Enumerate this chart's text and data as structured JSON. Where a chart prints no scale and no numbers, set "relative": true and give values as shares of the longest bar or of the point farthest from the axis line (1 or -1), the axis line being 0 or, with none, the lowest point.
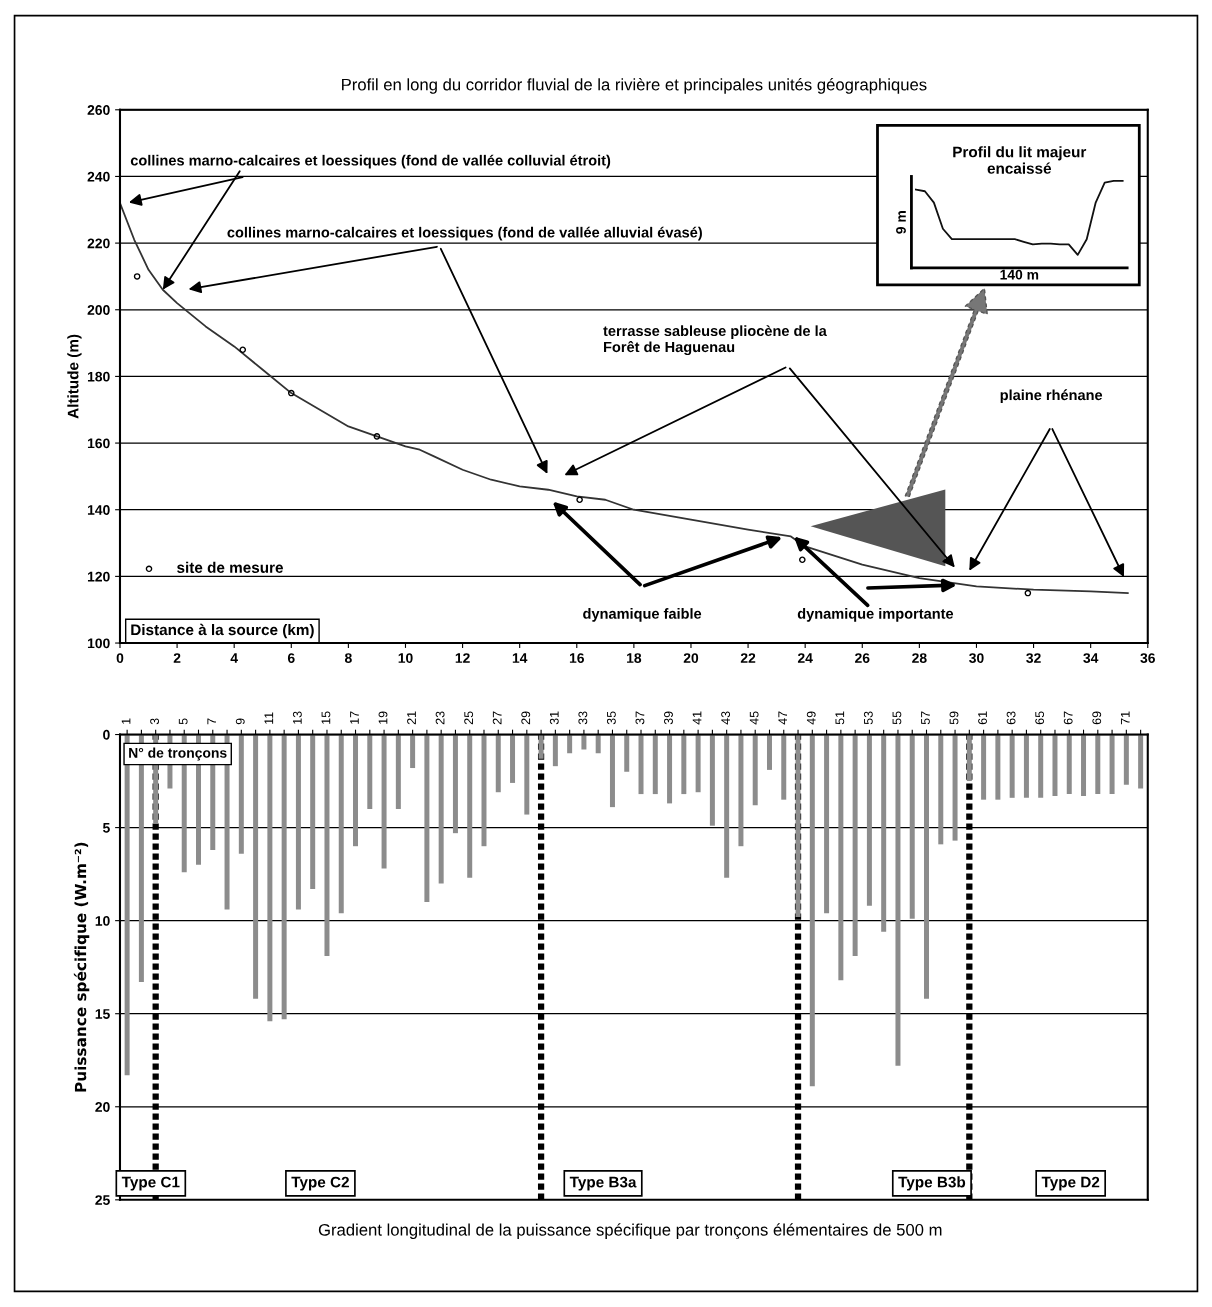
{
  "chart_data": [
    {
      "type": "line",
      "title": "Profil en long du corridor fluvial de la rivière et principales unités géographiques",
      "xlabel": "Distance à la source (km)",
      "ylabel": "Altitude (m)",
      "xlim": [
        0,
        36
      ],
      "xticks": [
        0,
        2,
        4,
        6,
        8,
        10,
        12,
        14,
        16,
        18,
        20,
        22,
        24,
        26,
        28,
        30,
        32,
        34,
        36
      ],
      "ylim": [
        100,
        260
      ],
      "yticks": [
        100,
        120,
        140,
        160,
        180,
        200,
        220,
        240,
        260
      ],
      "grid": "y",
      "legend": "bottom left",
      "series": [
        {
          "type": "line",
          "color": "#333333",
          "marker": "none",
          "x": [
            0,
            0.5,
            1,
            1.5,
            2,
            3,
            4,
            5,
            6,
            7,
            8,
            9,
            10,
            10.5,
            11,
            12,
            13,
            14,
            15,
            16,
            17,
            18,
            20,
            22,
            23.5,
            24,
            26,
            28,
            30,
            32,
            34,
            35.3
          ],
          "values": [
            232,
            221,
            212,
            206,
            202,
            195,
            189,
            182,
            175,
            170,
            165,
            162,
            159,
            158,
            156,
            152,
            149,
            147,
            146,
            144,
            143,
            140,
            137,
            134,
            132,
            129,
            123.5,
            119.5,
            117,
            116,
            115.5,
            115
          ]
        },
        {
          "type": "scatter",
          "name": "site de mesure",
          "color": "#000000",
          "marker": "circle",
          "x": [
            0.6,
            4.3,
            6,
            9,
            16.1,
            23.9,
            31.8
          ],
          "values": [
            210,
            188,
            175,
            162,
            143,
            125,
            115
          ]
        }
      ],
      "annotations": [
        {
          "text": "collines marno-calcaires et loessiques (fond de vallée colluvial étroit)",
          "x": 1.5,
          "y": 206
        },
        "collines marno-calcaires et loessiques (fond de vallée alluvial évasé)",
        "terrasse sableuse pliocène de la\nForêt de Haguenau",
        "plaine rhénane",
        "dynamique faible",
        {
          "text": "dynamique importante",
          "x": 23.6,
          "y": 132
        }
      ]
    },
    {
      "type": "line",
      "relative": true,
      "title": "Profil du lit majeur\nencaissé",
      "xlabel": "140 m",
      "ylabel": "9 m",
      "color": "#111111",
      "categories": [
        null,
        null,
        null,
        null,
        null,
        null,
        null,
        null,
        null,
        null,
        null,
        null,
        null,
        null,
        null,
        null,
        null,
        null,
        null,
        null,
        null,
        null,
        null,
        null
      ],
      "values": [
        0.9,
        0.88,
        0.75,
        0.45,
        0.33,
        0.33,
        0.33,
        0.33,
        0.33,
        0.33,
        0.33,
        0.33,
        0.3,
        0.27,
        0.28,
        0.28,
        0.27,
        0.27,
        0.15,
        0.33,
        0.75,
        0.98,
        1.0,
        1.0
      ]
    },
    {
      "type": "bar",
      "title": "Gradient longitudinal de la puissance spécifique par tronçons élémentaires de 500 m",
      "xlabel": "N° de tronçons",
      "ylabel": "Puissance spécifique (W.m⁻²)",
      "x": [
        1,
        2,
        3,
        4,
        5,
        6,
        7,
        8,
        9,
        10,
        11,
        12,
        13,
        14,
        15,
        16,
        17,
        18,
        19,
        20,
        21,
        22,
        23,
        24,
        25,
        26,
        27,
        28,
        29,
        30,
        31,
        32,
        33,
        34,
        35,
        36,
        37,
        38,
        39,
        40,
        41,
        42,
        43,
        44,
        45,
        46,
        47,
        48,
        49,
        50,
        51,
        52,
        53,
        54,
        55,
        56,
        57,
        58,
        59,
        60,
        61,
        62,
        63,
        64,
        65,
        66,
        67,
        68,
        69,
        70,
        71,
        72
      ],
      "values": [
        18.3,
        13.3,
        4.8,
        2.9,
        7.4,
        7.0,
        6.2,
        9.4,
        6.4,
        14.2,
        15.4,
        15.3,
        9.4,
        8.3,
        11.9,
        9.6,
        6.0,
        4.0,
        7.2,
        4.0,
        1.8,
        9.0,
        8.0,
        5.3,
        7.7,
        6.0,
        3.1,
        2.6,
        4.3,
        1.3,
        1.7,
        1.0,
        0.8,
        1.0,
        3.9,
        2.0,
        3.2,
        3.2,
        3.7,
        3.2,
        3.1,
        4.9,
        7.7,
        6.0,
        3.8,
        1.9,
        3.5,
        9.8,
        18.9,
        9.6,
        13.2,
        11.9,
        9.2,
        10.6,
        17.8,
        9.9,
        14.2,
        5.9,
        5.7,
        2.5,
        3.5,
        3.5,
        3.4,
        3.4,
        3.4,
        3.3,
        3.2,
        3.3,
        3.2,
        3.2,
        2.7,
        2.9
      ],
      "color": "#8c8c8c",
      "xlim": [
        0.5,
        72.5
      ],
      "xticks": [
        1,
        {
          "value": 2,
          "label": null
        },
        3,
        {
          "value": 4,
          "label": null
        },
        5,
        {
          "value": 6,
          "label": null
        },
        7,
        {
          "value": 8,
          "label": null
        },
        9,
        {
          "value": 10,
          "label": null
        },
        11,
        {
          "value": 12,
          "label": null
        },
        13,
        {
          "value": 14,
          "label": null
        },
        15,
        {
          "value": 16,
          "label": null
        },
        17,
        {
          "value": 18,
          "label": null
        },
        19,
        {
          "value": 20,
          "label": null
        },
        21,
        {
          "value": 22,
          "label": null
        },
        23,
        {
          "value": 24,
          "label": null
        },
        25,
        {
          "value": 26,
          "label": null
        },
        27,
        {
          "value": 28,
          "label": null
        },
        29,
        {
          "value": 30,
          "label": null
        },
        31,
        {
          "value": 32,
          "label": null
        },
        33,
        {
          "value": 34,
          "label": null
        },
        35,
        {
          "value": 36,
          "label": null
        },
        37,
        {
          "value": 38,
          "label": null
        },
        39,
        {
          "value": 40,
          "label": null
        },
        41,
        {
          "value": 42,
          "label": null
        },
        43,
        {
          "value": 44,
          "label": null
        },
        45,
        {
          "value": 46,
          "label": null
        },
        47,
        {
          "value": 48,
          "label": null
        },
        49,
        {
          "value": 50,
          "label": null
        },
        51,
        {
          "value": 52,
          "label": null
        },
        53,
        {
          "value": 54,
          "label": null
        },
        55,
        {
          "value": 56,
          "label": null
        },
        57,
        {
          "value": 58,
          "label": null
        },
        59,
        {
          "value": 60,
          "label": null
        },
        61,
        {
          "value": 62,
          "label": null
        },
        63,
        {
          "value": 64,
          "label": null
        },
        65,
        {
          "value": 66,
          "label": null
        },
        67,
        {
          "value": 68,
          "label": null
        },
        69,
        {
          "value": 70,
          "label": null
        },
        71,
        {
          "value": 72,
          "label": null
        }
      ],
      "ylim": [
        25,
        0
      ],
      "yticks": [
        0,
        5,
        10,
        15,
        20,
        25
      ],
      "grid": "y",
      "ref_lines": [
        {
          "axis": "x",
          "value": 3,
          "color": "#000000",
          "line_style": "dotted"
        },
        {
          "axis": "x",
          "value": 30,
          "color": "#000000",
          "line_style": "dotted"
        },
        {
          "axis": "x",
          "value": 48,
          "color": "#000000",
          "line_style": "dotted"
        },
        {
          "axis": "x",
          "value": 60,
          "color": "#000000",
          "line_style": "dotted"
        }
      ],
      "annotations": [
        "Type C1",
        "Type C2",
        "Type B3a",
        "Type B3b",
        "Type D2"
      ]
    }
  ]
}
